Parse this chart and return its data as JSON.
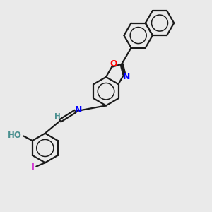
{
  "background_color": "#eaeaea",
  "bond_color": "#1a1a1a",
  "atom_colors": {
    "O": "#ff0000",
    "N": "#0000ff",
    "I": "#cc00cc",
    "H_teal": "#4a9090",
    "C": "#1a1a1a"
  },
  "figsize": [
    3.0,
    3.0
  ],
  "dpi": 100
}
